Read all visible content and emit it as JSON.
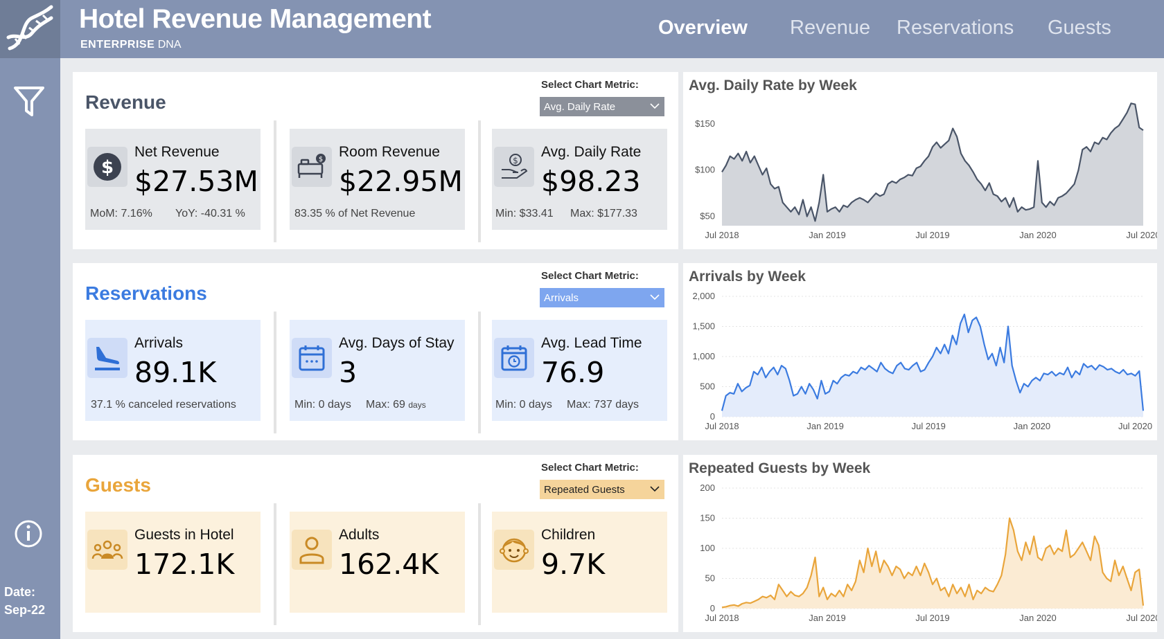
{
  "app": {
    "title": "Hotel Revenue Management",
    "brand_bold": "ENTERPRISE",
    "brand_rest": "DNA"
  },
  "nav": [
    "Overview",
    "Revenue",
    "Reservations",
    "Guests"
  ],
  "sidebar": {
    "date_label": "Date:",
    "date_value": "Sep-22"
  },
  "colors": {
    "revenue": "#4a5568",
    "reservations": "#3b7be0",
    "guests": "#e9a53b"
  },
  "revenue": {
    "title": "Revenue",
    "select_label": "Select Chart Metric:",
    "select_value": "Avg. Daily Rate",
    "cards": [
      {
        "icon": "dollar-icon",
        "name": "Net Revenue",
        "value": "$27.53M",
        "foot_a": "MoM: 7.16%",
        "foot_b": "YoY: -40.31 %"
      },
      {
        "icon": "bed-icon",
        "name": "Room Revenue",
        "value": "$22.95M",
        "foot_a": "83.35 % of Net Revenue",
        "foot_b": ""
      },
      {
        "icon": "hand-coin-icon",
        "name": "Avg. Daily Rate",
        "value": "$98.23",
        "foot_a": "Min: $33.41",
        "foot_b": "Max:  $177.33"
      }
    ]
  },
  "reservations": {
    "title": "Reservations",
    "select_label": "Select Chart Metric:",
    "select_value": "Arrivals",
    "cards": [
      {
        "icon": "plane-landing-icon",
        "name": "Arrivals",
        "value": "89.1K",
        "foot_a": "37.1 %  canceled reservations",
        "foot_b": ""
      },
      {
        "icon": "calendar-icon",
        "name": "Avg. Days of Stay",
        "value": "3",
        "foot_a": "Min: 0 days",
        "foot_b": "Max:  69",
        "foot_b_small": "days"
      },
      {
        "icon": "calendar-clock-icon",
        "name": "Avg. Lead Time",
        "value": "76.9",
        "foot_a": "Min: 0 days",
        "foot_b": "Max:  737 days"
      }
    ]
  },
  "guests": {
    "title": "Guests",
    "select_label": "Select Chart Metric:",
    "select_value": "Repeated Guests",
    "cards": [
      {
        "icon": "group-icon",
        "name": "Guests in Hotel",
        "value": "172.1K"
      },
      {
        "icon": "person-icon",
        "name": "Adults",
        "value": "162.4K"
      },
      {
        "icon": "child-face-icon",
        "name": "Children",
        "value": "9.7K"
      }
    ]
  },
  "chart_data": [
    {
      "type": "area",
      "title": "Avg. Daily Rate by Week",
      "ylabel": "",
      "xlabel": "",
      "ylim": [
        40,
        170
      ],
      "yticks": [
        "$50",
        "$100",
        "$150"
      ],
      "ytick_values": [
        50,
        100,
        150
      ],
      "xticks": [
        "Jul 2018",
        "Jan 2019",
        "Jul 2019",
        "Jan 2020",
        "Jul 2020"
      ],
      "xtick_weeks": [
        0,
        26,
        52,
        78,
        104
      ],
      "color": "#4a5568",
      "fill": "#d3d6db",
      "grid": false,
      "values": [
        98,
        105,
        115,
        112,
        118,
        110,
        120,
        108,
        115,
        105,
        95,
        102,
        85,
        80,
        82,
        65,
        60,
        55,
        60,
        52,
        68,
        50,
        60,
        45,
        65,
        95,
        55,
        58,
        60,
        55,
        62,
        60,
        65,
        68,
        70,
        68,
        65,
        70,
        75,
        72,
        74,
        85,
        88,
        86,
        90,
        92,
        95,
        94,
        102,
        104,
        110,
        115,
        125,
        130,
        124,
        128,
        132,
        145,
        136,
        118,
        110,
        105,
        98,
        90,
        85,
        78,
        86,
        74,
        72,
        66,
        70,
        60,
        70,
        55,
        60,
        57,
        58,
        60,
        110,
        65,
        60,
        66,
        62,
        70,
        72,
        75,
        80,
        85,
        100,
        122,
        125,
        120,
        130,
        128,
        135,
        133,
        140,
        145,
        148,
        155,
        162,
        172,
        171,
        146,
        143
      ]
    },
    {
      "type": "area",
      "title": "Arrivals by Week",
      "ylabel": "",
      "xlabel": "",
      "ylim": [
        0,
        2000
      ],
      "yticks": [
        "0",
        "500",
        "1,000",
        "1,500",
        "2,000"
      ],
      "ytick_values": [
        0,
        500,
        1000,
        1500,
        2000
      ],
      "xticks": [
        "Jul 2018",
        "Jan 2019",
        "Jul 2019",
        "Jan 2020",
        "Jul 2020"
      ],
      "xtick_weeks": [
        0,
        26,
        52,
        78,
        104
      ],
      "color": "#3b7be0",
      "fill": "#e4ecfb",
      "grid": true,
      "values": [
        100,
        350,
        400,
        380,
        550,
        420,
        480,
        520,
        750,
        700,
        820,
        650,
        750,
        820,
        700,
        850,
        800,
        600,
        350,
        380,
        500,
        380,
        550,
        450,
        300,
        600,
        380,
        420,
        600,
        550,
        650,
        700,
        680,
        750,
        720,
        820,
        780,
        850,
        800,
        750,
        900,
        800,
        750,
        720,
        850,
        900,
        800,
        780,
        850,
        900,
        750,
        780,
        900,
        1000,
        1150,
        1050,
        1200,
        1050,
        1350,
        1200,
        1550,
        1700,
        1400,
        1600,
        1650,
        1500,
        1200,
        950,
        1050,
        850,
        1150,
        900,
        1500,
        850,
        600,
        400,
        550,
        500,
        600,
        650,
        600,
        720,
        700,
        750,
        680,
        730,
        700,
        820,
        650,
        760,
        700,
        880,
        820,
        850,
        780,
        860,
        830,
        780,
        800,
        750,
        720,
        780,
        700,
        720,
        680,
        760,
        100
      ]
    },
    {
      "type": "area",
      "title": "Repeated Guests by Week",
      "ylabel": "",
      "xlabel": "",
      "ylim": [
        0,
        200
      ],
      "yticks": [
        "0",
        "50",
        "100",
        "150",
        "200"
      ],
      "ytick_values": [
        0,
        50,
        100,
        150,
        200
      ],
      "xticks": [
        "Jul 2018",
        "Jan 2019",
        "Jul 2019",
        "Jan 2020",
        "Jul 2020"
      ],
      "xtick_weeks": [
        0,
        26,
        52,
        78,
        104
      ],
      "color": "#e9a53b",
      "fill": "#fbebd3",
      "grid": true,
      "values": [
        2,
        3,
        5,
        6,
        4,
        8,
        10,
        9,
        12,
        15,
        20,
        18,
        22,
        15,
        40,
        30,
        20,
        28,
        22,
        20,
        25,
        35,
        55,
        85,
        20,
        35,
        15,
        25,
        20,
        30,
        20,
        40,
        30,
        45,
        80,
        60,
        100,
        70,
        95,
        60,
        80,
        70,
        55,
        70,
        65,
        50,
        60,
        55,
        70,
        55,
        75,
        60,
        40,
        50,
        30,
        35,
        20,
        40,
        25,
        35,
        20,
        40,
        15,
        30,
        25,
        35,
        30,
        28,
        40,
        55,
        90,
        150,
        130,
        95,
        80,
        110,
        90,
        120,
        85,
        80,
        100,
        105,
        90,
        100,
        95,
        130,
        85,
        90,
        100,
        110,
        95,
        80,
        120,
        105,
        60,
        50,
        45,
        80,
        55,
        70,
        50,
        30,
        60,
        65,
        5
      ]
    }
  ]
}
